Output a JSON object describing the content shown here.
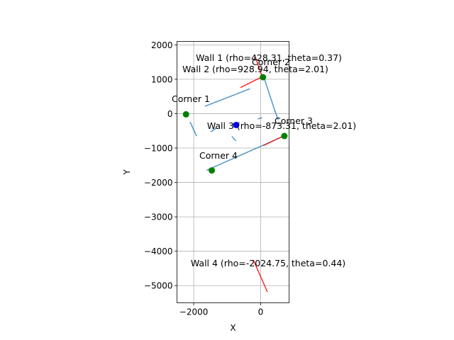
{
  "chart_data": {
    "type": "scatter",
    "title": "",
    "xlabel": "X",
    "ylabel": "Y",
    "xlim": [
      -2500,
      850
    ],
    "ylim": [
      -5500,
      2100
    ],
    "grid": true,
    "x_ticks": [
      -2000,
      0
    ],
    "x_tick_labels": [
      "−2000",
      "0"
    ],
    "y_ticks": [
      2000,
      1000,
      0,
      -1000,
      -2000,
      -3000,
      -4000,
      -5000
    ],
    "y_tick_labels": [
      "2000",
      "1000",
      "0",
      "−1000",
      "−2000",
      "−3000",
      "−4000",
      "−5000"
    ],
    "scan_points_color": "#1f77b4",
    "scan_segments": [
      {
        "x": [
          -1650,
          -330
        ],
        "y": [
          220,
          720
        ]
      },
      {
        "x": [
          90,
          430
        ],
        "y": [
          1080,
          70
        ]
      },
      {
        "x": [
          430,
          520
        ],
        "y": [
          70,
          -170
        ]
      },
      {
        "x": [
          -70,
          30
        ],
        "y": [
          -150,
          -120
        ]
      },
      {
        "x": [
          -2100,
          -1920
        ],
        "y": [
          -260,
          -640
        ]
      },
      {
        "x": [
          -1480,
          -1330
        ],
        "y": [
          -520,
          -420
        ]
      },
      {
        "x": [
          -850,
          -750
        ],
        "y": [
          -670,
          -780
        ]
      },
      {
        "x": [
          -1600,
          650
        ],
        "y": [
          -1640,
          -670
        ]
      }
    ],
    "wall_color": "#ff0000",
    "walls": [
      {
        "label": "Wall 1 (rho=428.31, theta=0.37)",
        "x": [
          -180,
          50
        ],
        "y": [
          1700,
          1070
        ]
      },
      {
        "label": "Wall 2 (rho=928.94, theta=2.01)",
        "x": [
          -600,
          80
        ],
        "y": [
          760,
          1090
        ]
      },
      {
        "label": "Wall 3 (rho=-873.31, theta=2.01)",
        "x": [
          80,
          700
        ],
        "y": [
          -930,
          -640
        ]
      },
      {
        "label": "Wall 4 (rho=-2024.75, theta=0.44)",
        "x": [
          -220,
          200
        ],
        "y": [
          -4250,
          -5180
        ]
      }
    ],
    "corner_color": "#008000",
    "corners": [
      {
        "label": "Corner 1",
        "x": -2230,
        "y": -20
      },
      {
        "label": "Corner 2",
        "x": 70,
        "y": 1060
      },
      {
        "label": "Corner 3",
        "x": 710,
        "y": -650
      },
      {
        "label": "Corner 4",
        "x": -1460,
        "y": -1650
      }
    ],
    "robot_color": "#0000ff",
    "robot": {
      "x": -730,
      "y": -330
    }
  }
}
